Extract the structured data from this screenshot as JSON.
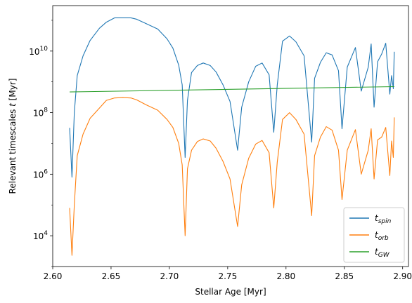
{
  "chart_data": {
    "type": "line",
    "xlabel": "Stellar Age [Myr]",
    "ylabel": "Relevant timescales t [Myr]",
    "xlim": [
      2.6,
      2.905
    ],
    "ylim": [
      1000.0,
      300000000000.0
    ],
    "yscale": "log",
    "x_ticks": [
      "2.60",
      "2.65",
      "2.70",
      "2.75",
      "2.80",
      "2.85",
      "2.90"
    ],
    "y_ticks": [
      {
        "value": 10000.0,
        "base": "10",
        "exp": "4"
      },
      {
        "value": 1000000.0,
        "base": "10",
        "exp": "6"
      },
      {
        "value": 100000000.0,
        "base": "10",
        "exp": "8"
      },
      {
        "value": 10000000000.0,
        "base": "10",
        "exp": "10"
      }
    ],
    "legend_position": "lower right",
    "series": [
      {
        "name": "t_spin",
        "label_main": "t",
        "label_sub": "spin",
        "color": "#1f77b4",
        "points": [
          [
            2.6145,
            32000000.0
          ],
          [
            2.6165,
            800000.0
          ],
          [
            2.6185,
            100000000.0
          ],
          [
            2.621,
            1600000000.0
          ],
          [
            2.626,
            7000000000.0
          ],
          [
            2.632,
            22000000000.0
          ],
          [
            2.64,
            55000000000.0
          ],
          [
            2.646,
            87000000000.0
          ],
          [
            2.653,
            120000000000.0
          ],
          [
            2.66,
            120000000000.0
          ],
          [
            2.667,
            120000000000.0
          ],
          [
            2.672,
            108000000000.0
          ],
          [
            2.68,
            78000000000.0
          ],
          [
            2.69,
            52000000000.0
          ],
          [
            2.698,
            25000000000.0
          ],
          [
            2.703,
            12500000000.0
          ],
          [
            2.708,
            3500000000.0
          ],
          [
            2.711,
            800000000.0
          ],
          [
            2.7135,
            3500000.0
          ],
          [
            2.7155,
            250000000.0
          ],
          [
            2.719,
            2000000000.0
          ],
          [
            2.724,
            3400000000.0
          ],
          [
            2.729,
            4100000000.0
          ],
          [
            2.735,
            3400000000.0
          ],
          [
            2.74,
            2100000000.0
          ],
          [
            2.746,
            800000000.0
          ],
          [
            2.752,
            230000000.0
          ],
          [
            2.7585,
            6000000.0
          ],
          [
            2.762,
            150000000.0
          ],
          [
            2.768,
            1000000000.0
          ],
          [
            2.774,
            3200000000.0
          ],
          [
            2.7795,
            4100000000.0
          ],
          [
            2.7855,
            1700000000.0
          ],
          [
            2.7895,
            23000000.0
          ],
          [
            2.7925,
            800000000.0
          ],
          [
            2.797,
            21000000000.0
          ],
          [
            2.803,
            31000000000.0
          ],
          [
            2.8085,
            20000000000.0
          ],
          [
            2.8155,
            7000000000.0
          ],
          [
            2.822,
            11000000.0
          ],
          [
            2.8245,
            1300000000.0
          ],
          [
            2.8295,
            4300000000.0
          ],
          [
            2.8345,
            8800000000.0
          ],
          [
            2.8395,
            7500000000.0
          ],
          [
            2.845,
            2300000000.0
          ],
          [
            2.848,
            30000000.0
          ],
          [
            2.8525,
            3000000000.0
          ],
          [
            2.8595,
            13000000000.0
          ],
          [
            2.8645,
            500000000.0
          ],
          [
            2.8705,
            3000000000.0
          ],
          [
            2.873,
            17000000000.0
          ],
          [
            2.8755,
            150000000.0
          ],
          [
            2.8785,
            4500000000.0
          ],
          [
            2.882,
            8000000000.0
          ],
          [
            2.8855,
            18000000000.0
          ],
          [
            2.889,
            400000000.0
          ],
          [
            2.8905,
            1600000000.0
          ],
          [
            2.892,
            600000000.0
          ],
          [
            2.8928,
            9500000000.0
          ]
        ]
      },
      {
        "name": "t_orb",
        "label_main": "t",
        "label_sub": "orb",
        "color": "#ff7f0e",
        "points": [
          [
            2.6145,
            80000.0
          ],
          [
            2.6165,
            2300.0
          ],
          [
            2.6185,
            100000.0
          ],
          [
            2.621,
            4000000.0
          ],
          [
            2.626,
            20000000.0
          ],
          [
            2.632,
            65000000.0
          ],
          [
            2.64,
            140000000.0
          ],
          [
            2.646,
            250000000.0
          ],
          [
            2.653,
            300000000.0
          ],
          [
            2.66,
            310000000.0
          ],
          [
            2.667,
            300000000.0
          ],
          [
            2.672,
            260000000.0
          ],
          [
            2.68,
            180000000.0
          ],
          [
            2.69,
            120000000.0
          ],
          [
            2.698,
            60000000.0
          ],
          [
            2.703,
            33000000.0
          ],
          [
            2.708,
            10000000.0
          ],
          [
            2.711,
            2000000.0
          ],
          [
            2.7135,
            10000.0
          ],
          [
            2.7155,
            1500000.0
          ],
          [
            2.719,
            6000000.0
          ],
          [
            2.724,
            11500000.0
          ],
          [
            2.729,
            14000000.0
          ],
          [
            2.735,
            12000000.0
          ],
          [
            2.74,
            7000000.0
          ],
          [
            2.746,
            2600000.0
          ],
          [
            2.752,
            700000.0
          ],
          [
            2.7585,
            20000.0
          ],
          [
            2.762,
            450000.0
          ],
          [
            2.768,
            3300000.0
          ],
          [
            2.774,
            9500000.0
          ],
          [
            2.7795,
            12500000.0
          ],
          [
            2.7855,
            5000000.0
          ],
          [
            2.7895,
            80000.0
          ],
          [
            2.7925,
            2500000.0
          ],
          [
            2.797,
            60000000.0
          ],
          [
            2.803,
            100000000.0
          ],
          [
            2.8085,
            60000000.0
          ],
          [
            2.8155,
            20000000.0
          ],
          [
            2.822,
            45000.0
          ],
          [
            2.8245,
            4000000.0
          ],
          [
            2.8295,
            16000000.0
          ],
          [
            2.8345,
            35000000.0
          ],
          [
            2.8395,
            27000000.0
          ],
          [
            2.845,
            6000000.0
          ],
          [
            2.848,
            150000.0
          ],
          [
            2.8525,
            6000000.0
          ],
          [
            2.8595,
            28000000.0
          ],
          [
            2.8645,
            1000000.0
          ],
          [
            2.8705,
            6000000.0
          ],
          [
            2.873,
            30000000.0
          ],
          [
            2.8755,
            700000.0
          ],
          [
            2.8785,
            13000000.0
          ],
          [
            2.882,
            16000000.0
          ],
          [
            2.8855,
            33000000.0
          ],
          [
            2.889,
            900000.0
          ],
          [
            2.8905,
            12000000.0
          ],
          [
            2.892,
            3500000.0
          ],
          [
            2.8928,
            70000000.0
          ]
        ]
      },
      {
        "name": "t_GW",
        "label_main": "t",
        "label_sub": "GW",
        "color": "#2ca02c",
        "points": [
          [
            2.6145,
            470000000.0
          ],
          [
            2.8928,
            700000000.0
          ]
        ]
      }
    ]
  }
}
